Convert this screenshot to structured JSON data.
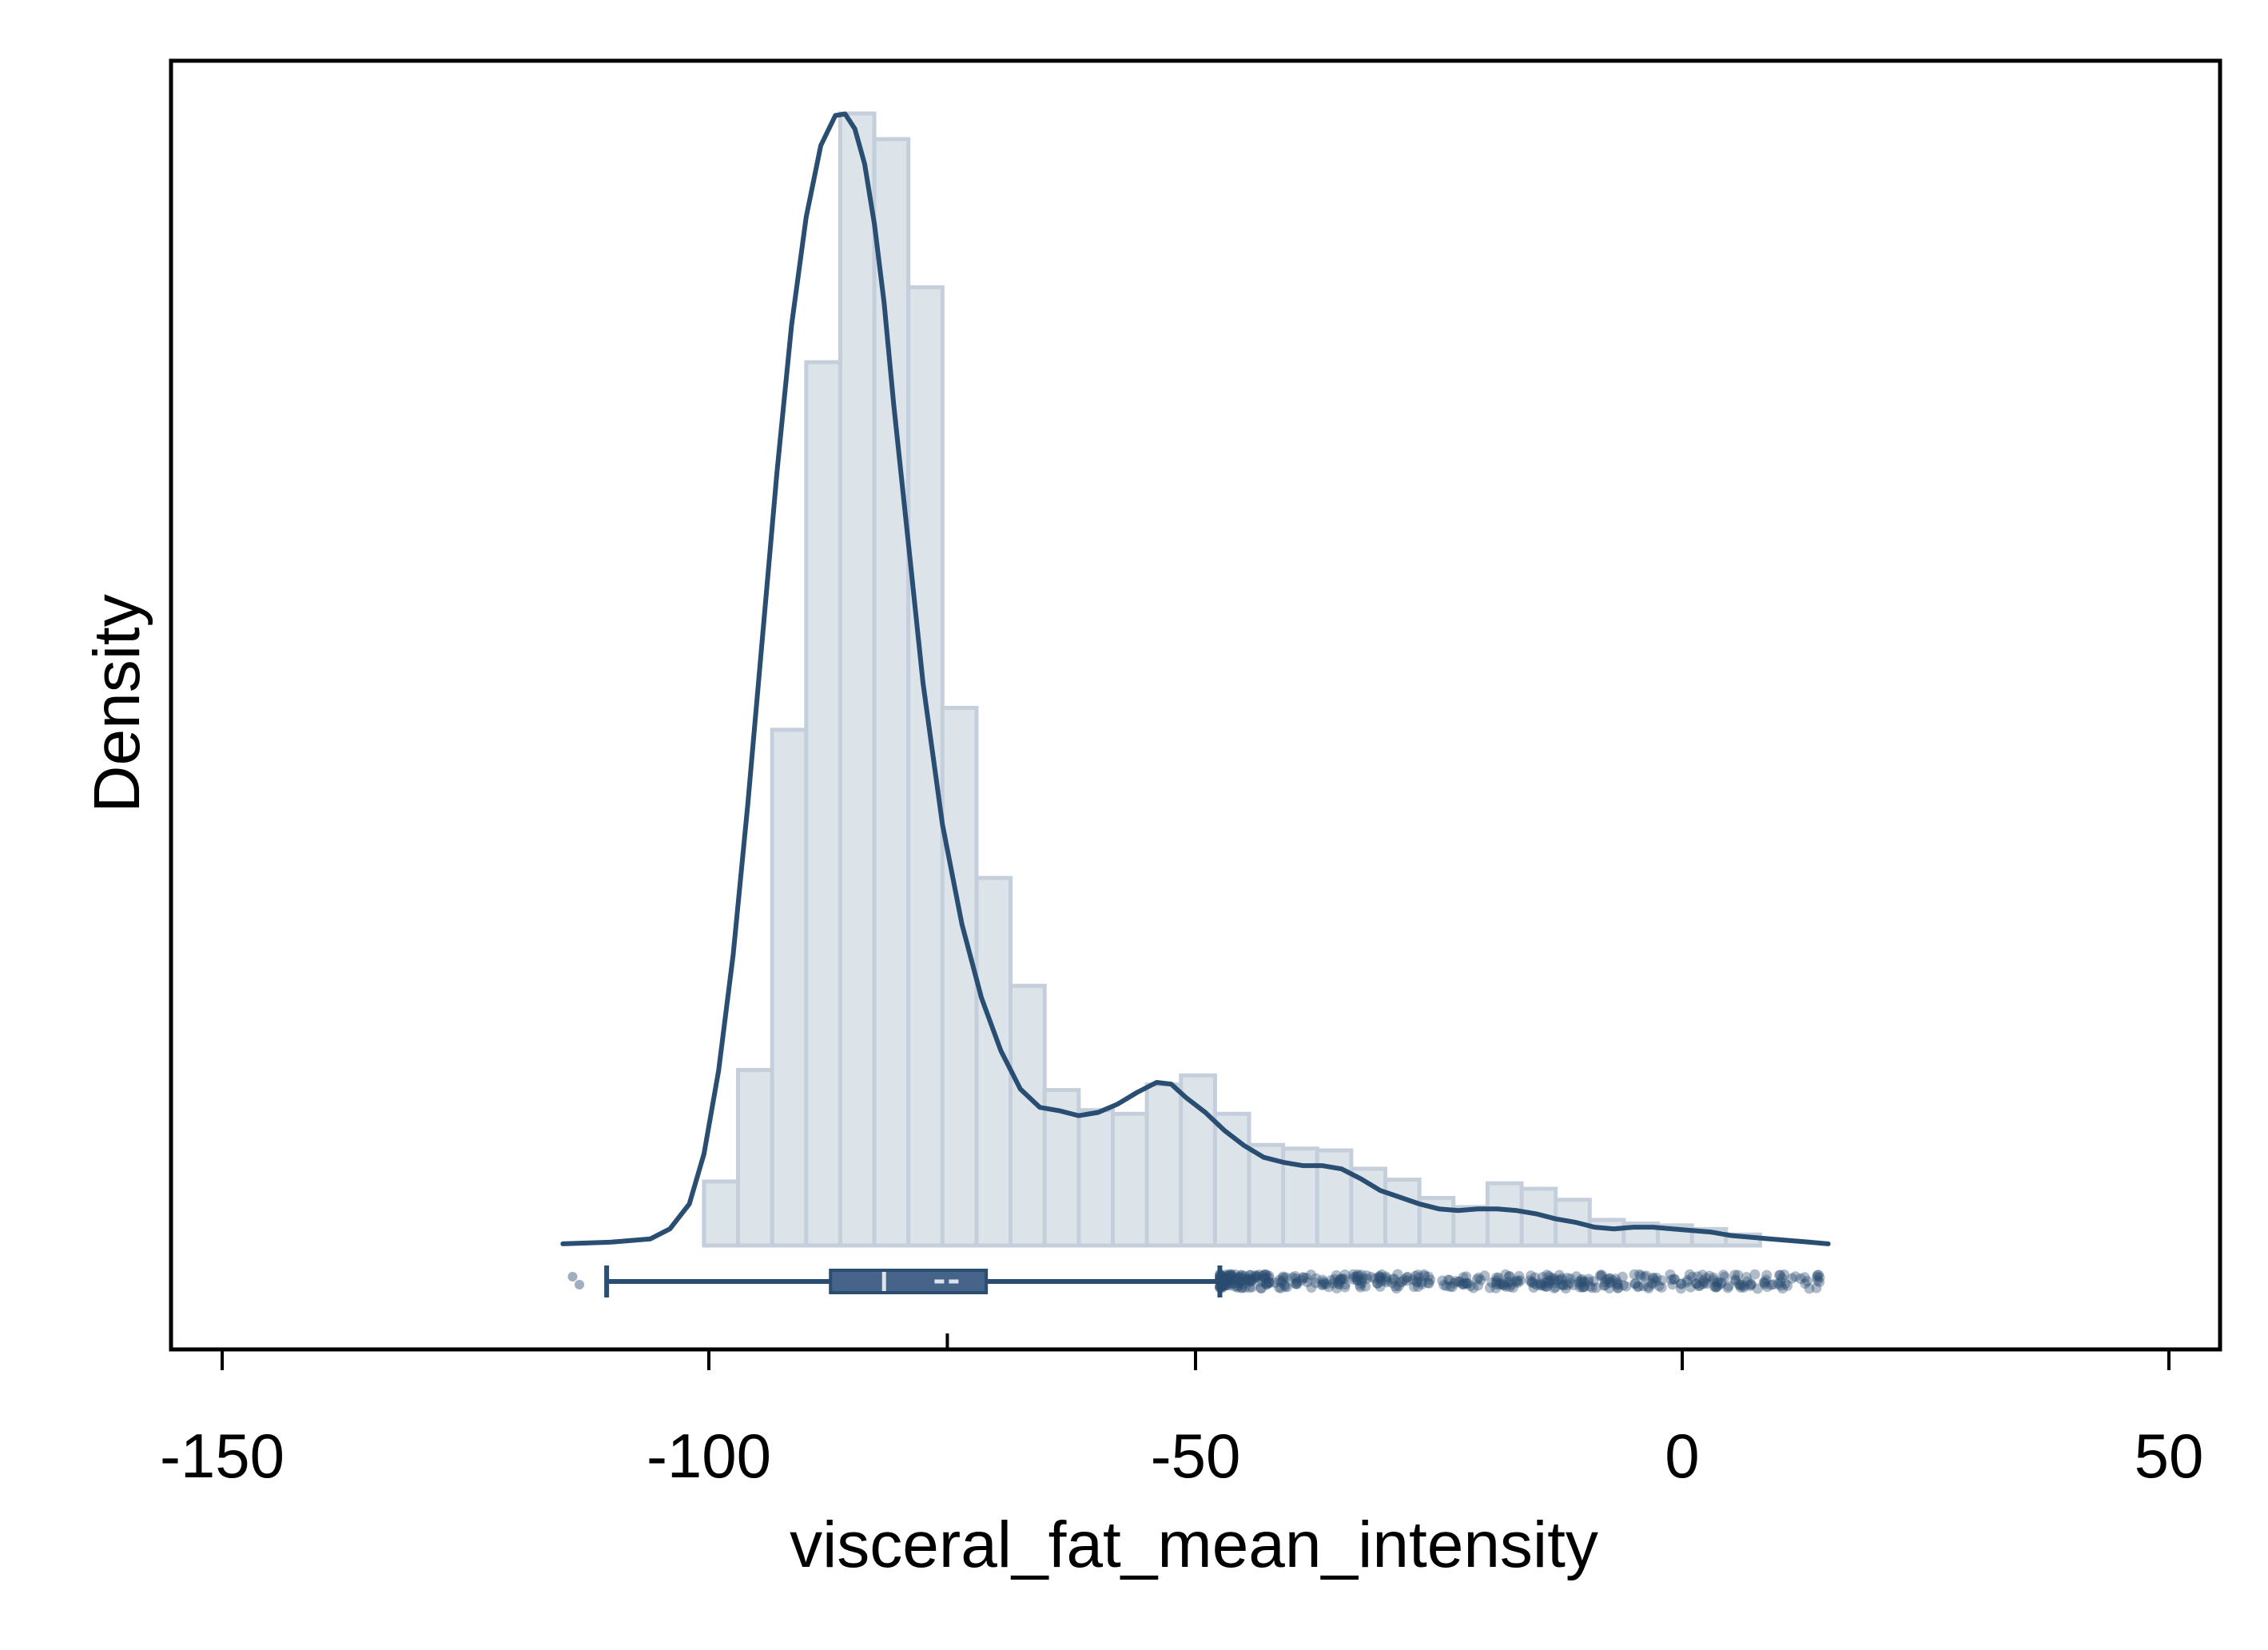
{
  "chart_data": {
    "type": "histogram",
    "xlabel": "visceral_fat_mean_intensity",
    "ylabel": "Density",
    "xlim": [
      -155,
      55
    ],
    "x_ticks": [
      -150,
      -100,
      -50,
      0,
      50
    ],
    "y_ticks": [],
    "grid": false,
    "histogram": {
      "bin_width": 3.5,
      "bins_start": [
        -100.5,
        -97,
        -93.5,
        -90,
        -86.5,
        -83,
        -79.5,
        -76,
        -72.5,
        -69,
        -65.5,
        -62,
        -58.5,
        -55,
        -51.5,
        -48,
        -44.5,
        -41,
        -37.5,
        -34,
        -30.5,
        -27,
        -23.5,
        -20,
        -16.5,
        -13,
        -9.5,
        -6,
        -2.5,
        1,
        4.5
      ],
      "heights": [
        0.0035,
        0.0096,
        0.0282,
        0.0483,
        0.0619,
        0.0605,
        0.0524,
        0.0294,
        0.0201,
        0.0142,
        0.0085,
        0.0074,
        0.0072,
        0.0088,
        0.0093,
        0.0072,
        0.0055,
        0.0053,
        0.0052,
        0.0042,
        0.0036,
        0.0026,
        0.0021,
        0.0034,
        0.0031,
        0.0025,
        0.0014,
        0.0012,
        0.0011,
        0.0009,
        0.0006
      ],
      "fill_color": "#dce4ea",
      "edge_color": "#c4cfdb"
    },
    "kde": {
      "x": [
        -115,
        -110,
        -106,
        -104,
        -102,
        -100.5,
        -99,
        -97.5,
        -96,
        -94.5,
        -93,
        -91.5,
        -90,
        -88.5,
        -87,
        -86,
        -85,
        -84,
        -83,
        -82,
        -81,
        -79.5,
        -78,
        -76,
        -74,
        -72,
        -70,
        -68,
        -66,
        -64,
        -62,
        -60,
        -58,
        -56,
        -54,
        -52.5,
        -51,
        -49,
        -47,
        -45,
        -43,
        -41,
        -39,
        -37,
        -35,
        -33,
        -31,
        -29,
        -27,
        -25,
        -23,
        -21,
        -19,
        -17,
        -15,
        -13,
        -11,
        -9,
        -7,
        -5,
        -3,
        -1,
        1,
        3,
        5,
        7,
        9,
        11,
        13,
        15
      ],
      "y": [
        0.0001,
        0.0002,
        0.0004,
        0.001,
        0.0025,
        0.0055,
        0.0105,
        0.0175,
        0.0265,
        0.0365,
        0.0465,
        0.0553,
        0.0618,
        0.0661,
        0.0679,
        0.068,
        0.0671,
        0.065,
        0.0614,
        0.0567,
        0.0505,
        0.0422,
        0.0338,
        0.0253,
        0.0193,
        0.0149,
        0.0117,
        0.0094,
        0.0083,
        0.0081,
        0.0078,
        0.008,
        0.0085,
        0.0092,
        0.0098,
        0.0097,
        0.0089,
        0.008,
        0.0069,
        0.006,
        0.0053,
        0.005,
        0.0048,
        0.0048,
        0.0046,
        0.004,
        0.0033,
        0.0029,
        0.0025,
        0.0022,
        0.0021,
        0.0022,
        0.0022,
        0.0021,
        0.0019,
        0.0016,
        0.0014,
        0.0011,
        0.001,
        0.0011,
        0.0011,
        0.001,
        0.0009,
        0.0008,
        0.0006,
        0.0005,
        0.0004,
        0.0003,
        0.0002,
        0.0001
      ],
      "color": "#2a4d72"
    },
    "boxplot": {
      "whisker_low": -110.5,
      "q1": -87.5,
      "median": -82,
      "mean": -75.5,
      "q3": -71.5,
      "whisker_high": -47.5,
      "outliers_low": [
        -114,
        -113.3
      ],
      "outlier_range_high": [
        -47.5,
        14.5
      ],
      "color": "#2a4d72"
    }
  }
}
